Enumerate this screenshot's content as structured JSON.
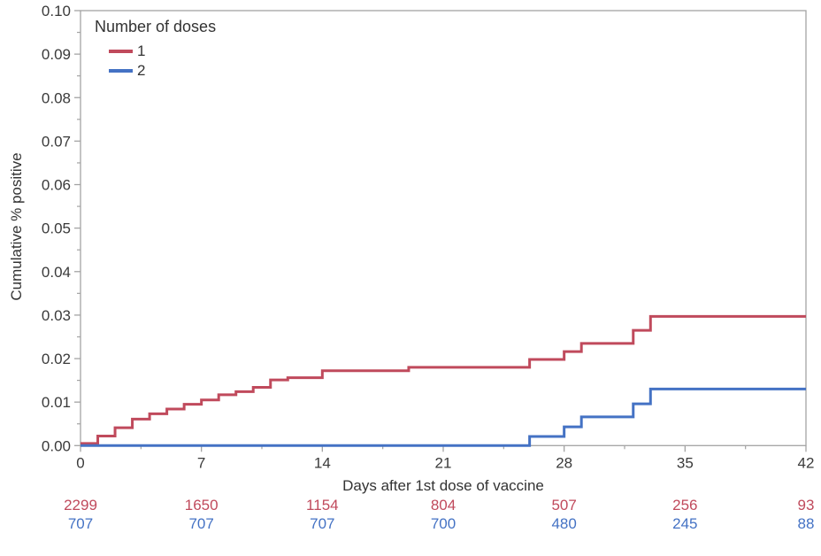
{
  "figure": {
    "background": "#ffffff",
    "frame_color": "#a3a3a3",
    "tick_color": "#a3a3a3",
    "text_color": "#3a3a3a"
  },
  "legend": {
    "title": "Number of doses",
    "items": [
      {
        "label": "1",
        "color": "#c04a5c"
      },
      {
        "label": "2",
        "color": "#4472c4"
      }
    ]
  },
  "chart_data": {
    "type": "line",
    "subtype": "step-after",
    "title": "",
    "xlabel": "Days after 1st dose of vaccine",
    "ylabel": "Cumulative % positive",
    "xlim": [
      0,
      42
    ],
    "ylim": [
      0,
      0.1
    ],
    "grid": false,
    "legend_position": "top-left-inside",
    "x_major_ticks": [
      0,
      7,
      14,
      21,
      28,
      35,
      42
    ],
    "x_tick_labels": [
      "0",
      "7",
      "14",
      "21",
      "28",
      "35",
      "42"
    ],
    "x_minor_start": 3.5,
    "x_minor_step": 7,
    "y_major_step": 0.01,
    "y_minor_step": 0.005,
    "y_tick_labels": [
      "0.00",
      "0.01",
      "0.02",
      "0.03",
      "0.04",
      "0.05",
      "0.06",
      "0.07",
      "0.08",
      "0.09",
      "0.10"
    ],
    "series": [
      {
        "name": "1",
        "color": "#c04a5c",
        "points": [
          [
            0,
            0.0005
          ],
          [
            1,
            0.0022
          ],
          [
            2,
            0.0041
          ],
          [
            3,
            0.0061
          ],
          [
            4,
            0.0073
          ],
          [
            5,
            0.0084
          ],
          [
            6,
            0.0095
          ],
          [
            7,
            0.0105
          ],
          [
            8,
            0.0117
          ],
          [
            9,
            0.0124
          ],
          [
            10,
            0.0134
          ],
          [
            11,
            0.0151
          ],
          [
            12,
            0.0156
          ],
          [
            14,
            0.0172
          ],
          [
            19,
            0.018
          ],
          [
            26,
            0.0198
          ],
          [
            28,
            0.0216
          ],
          [
            29,
            0.0235
          ],
          [
            32,
            0.0265
          ],
          [
            33,
            0.0297
          ],
          [
            42,
            0.0297
          ]
        ]
      },
      {
        "name": "2",
        "color": "#4472c4",
        "points": [
          [
            0,
            0
          ],
          [
            26,
            0.0021
          ],
          [
            28,
            0.0043
          ],
          [
            29,
            0.0066
          ],
          [
            32,
            0.0096
          ],
          [
            33,
            0.013
          ],
          [
            42,
            0.013
          ]
        ]
      }
    ],
    "at_risk_table": {
      "days": [
        0,
        7,
        14,
        21,
        28,
        35,
        42
      ],
      "rows": [
        {
          "name": "1",
          "color": "#c04a5c",
          "values": [
            "2299",
            "1650",
            "1154",
            "804",
            "507",
            "256",
            "93"
          ]
        },
        {
          "name": "2",
          "color": "#4472c4",
          "values": [
            "707",
            "707",
            "707",
            "700",
            "480",
            "245",
            "88"
          ]
        }
      ]
    }
  }
}
